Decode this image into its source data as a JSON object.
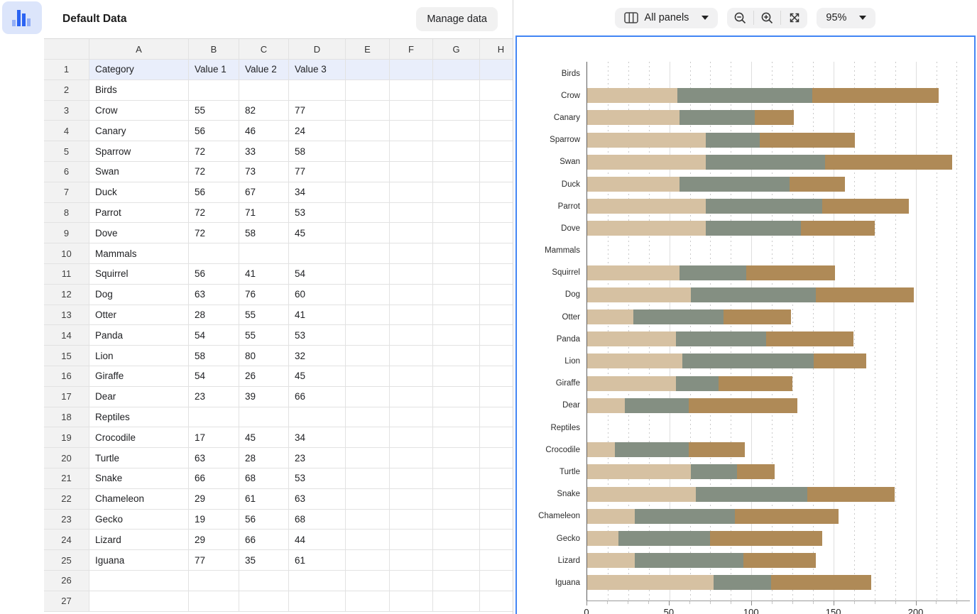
{
  "header": {
    "sheet_title": "Default Data",
    "manage_data_label": "Manage data",
    "panels_selector_label": "All panels",
    "zoom_level": "95%"
  },
  "colors": {
    "selection_blue": "#4285f4",
    "logo_tile_bg": "#dce5fb",
    "logo_bar_dark": "#2b63f2",
    "logo_bar_light": "#93aef6",
    "row1_highlight": "#e9eefb"
  },
  "spreadsheet": {
    "column_headers": [
      "A",
      "B",
      "C",
      "D",
      "E",
      "F",
      "G",
      "H"
    ],
    "rows": [
      {
        "n": 1,
        "cells": [
          "Category",
          "Value 1",
          "Value 2",
          "Value 3"
        ],
        "highlight": true
      },
      {
        "n": 2,
        "cells": [
          "Birds",
          "",
          ""
        ]
      },
      {
        "n": 3,
        "cells": [
          "Crow",
          "55",
          "82",
          "77"
        ]
      },
      {
        "n": 4,
        "cells": [
          "Canary",
          "56",
          "46",
          "24"
        ]
      },
      {
        "n": 5,
        "cells": [
          "Sparrow",
          "72",
          "33",
          "58"
        ]
      },
      {
        "n": 6,
        "cells": [
          "Swan",
          "72",
          "73",
          "77"
        ]
      },
      {
        "n": 7,
        "cells": [
          "Duck",
          "56",
          "67",
          "34"
        ]
      },
      {
        "n": 8,
        "cells": [
          "Parrot",
          "72",
          "71",
          "53"
        ]
      },
      {
        "n": 9,
        "cells": [
          "Dove",
          "72",
          "58",
          "45"
        ]
      },
      {
        "n": 10,
        "cells": [
          "Mammals",
          "",
          ""
        ]
      },
      {
        "n": 11,
        "cells": [
          "Squirrel",
          "56",
          "41",
          "54"
        ]
      },
      {
        "n": 12,
        "cells": [
          "Dog",
          "63",
          "76",
          "60"
        ]
      },
      {
        "n": 13,
        "cells": [
          "Otter",
          "28",
          "55",
          "41"
        ]
      },
      {
        "n": 14,
        "cells": [
          "Panda",
          "54",
          "55",
          "53"
        ]
      },
      {
        "n": 15,
        "cells": [
          "Lion",
          "58",
          "80",
          "32"
        ]
      },
      {
        "n": 16,
        "cells": [
          "Giraffe",
          "54",
          "26",
          "45"
        ]
      },
      {
        "n": 17,
        "cells": [
          "Dear",
          "23",
          "39",
          "66"
        ]
      },
      {
        "n": 18,
        "cells": [
          "Reptiles",
          "",
          ""
        ]
      },
      {
        "n": 19,
        "cells": [
          "Crocodile",
          "17",
          "45",
          "34"
        ]
      },
      {
        "n": 20,
        "cells": [
          "Turtle",
          "63",
          "28",
          "23"
        ]
      },
      {
        "n": 21,
        "cells": [
          "Snake",
          "66",
          "68",
          "53"
        ]
      },
      {
        "n": 22,
        "cells": [
          "Chameleon",
          "29",
          "61",
          "63"
        ]
      },
      {
        "n": 23,
        "cells": [
          "Gecko",
          "19",
          "56",
          "68"
        ]
      },
      {
        "n": 24,
        "cells": [
          "Lizard",
          "29",
          "66",
          "44"
        ]
      },
      {
        "n": 25,
        "cells": [
          "Iguana",
          "77",
          "35",
          "61"
        ]
      },
      {
        "n": 26,
        "cells": []
      },
      {
        "n": 27,
        "cells": []
      }
    ]
  },
  "chart_data": {
    "type": "bar",
    "orientation": "horizontal",
    "stacked": true,
    "categories": [
      "Birds",
      "Crow",
      "Canary",
      "Sparrow",
      "Swan",
      "Duck",
      "Parrot",
      "Dove",
      "Mammals",
      "Squirrel",
      "Dog",
      "Otter",
      "Panda",
      "Lion",
      "Giraffe",
      "Dear",
      "Reptiles",
      "Crocodile",
      "Turtle",
      "Snake",
      "Chameleon",
      "Gecko",
      "Lizard",
      "Iguana"
    ],
    "series": [
      {
        "name": "Value 1",
        "color": "#d6c1a2",
        "values": [
          null,
          55,
          56,
          72,
          72,
          56,
          72,
          72,
          null,
          56,
          63,
          28,
          54,
          58,
          54,
          23,
          null,
          17,
          63,
          66,
          29,
          19,
          29,
          77
        ]
      },
      {
        "name": "Value 2",
        "color": "#848f82",
        "values": [
          null,
          82,
          46,
          33,
          73,
          67,
          71,
          58,
          null,
          41,
          76,
          55,
          55,
          80,
          26,
          39,
          null,
          45,
          28,
          68,
          61,
          56,
          66,
          35
        ]
      },
      {
        "name": "Value 3",
        "color": "#af8a57",
        "values": [
          null,
          77,
          24,
          58,
          77,
          34,
          53,
          45,
          null,
          54,
          60,
          41,
          53,
          32,
          45,
          66,
          null,
          34,
          23,
          53,
          63,
          68,
          44,
          61
        ]
      }
    ],
    "x_ticks": [
      0,
      50,
      100,
      150,
      200
    ],
    "xlim": [
      0,
      233
    ],
    "minor_step": 12.5,
    "minor_max": 225,
    "grid": true,
    "legend": "none"
  }
}
